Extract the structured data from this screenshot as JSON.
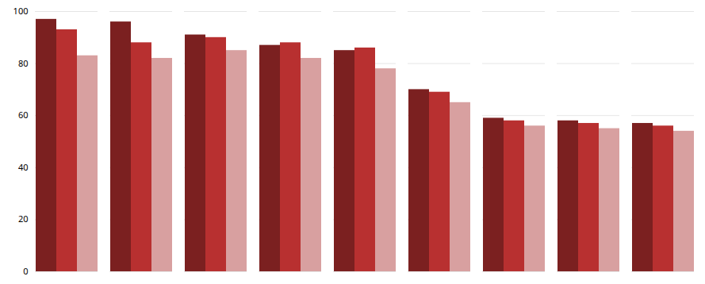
{
  "chart_data": {
    "type": "bar",
    "categories": [
      null,
      null,
      null,
      null,
      null,
      null,
      null,
      null,
      null
    ],
    "series": [
      {
        "color": "#7B2020",
        "values": [
          97,
          96,
          91,
          87,
          85,
          70,
          59,
          58,
          57
        ]
      },
      {
        "color": "#B83030",
        "values": [
          93,
          88,
          90,
          88,
          86,
          69,
          58,
          57,
          56
        ]
      },
      {
        "color": "#D8A0A0",
        "values": [
          83,
          82,
          85,
          82,
          78,
          65,
          56,
          55,
          54
        ]
      }
    ],
    "ylim": [
      0,
      100
    ],
    "yticks": [
      0,
      20,
      40,
      60,
      80,
      100
    ],
    "grid": true,
    "tick_labels": "y"
  }
}
